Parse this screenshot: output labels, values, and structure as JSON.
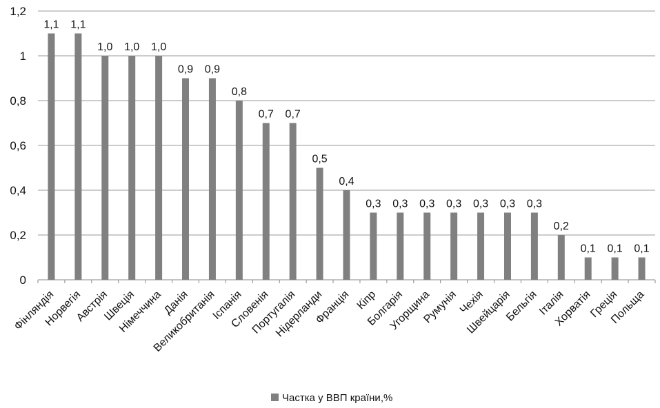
{
  "chart_data": {
    "type": "bar",
    "categories": [
      "Фінляндія",
      "Норвегія",
      "Австрія",
      "Швеція",
      "Німеччина",
      "Данія",
      "Великобританія",
      "Іспанія",
      "Словенія",
      "Португалія",
      "Нідерланди",
      "Франція",
      "Кіпр",
      "Болгарія",
      "Угорщина",
      "Румунія",
      "Чехія",
      "Швейцарія",
      "Бельгія",
      "Італія",
      "Хорватія",
      "Греція",
      "Польща"
    ],
    "values": [
      1.1,
      1.1,
      1.0,
      1.0,
      1.0,
      0.9,
      0.9,
      0.8,
      0.7,
      0.7,
      0.5,
      0.4,
      0.3,
      0.3,
      0.3,
      0.3,
      0.3,
      0.3,
      0.3,
      0.2,
      0.1,
      0.1,
      0.1
    ],
    "data_labels": [
      "1,1",
      "1,1",
      "1,0",
      "1,0",
      "1,0",
      "0,9",
      "0,9",
      "0,8",
      "0,7",
      "0,7",
      "0,5",
      "0,4",
      "0,3",
      "0,3",
      "0,3",
      "0,3",
      "0,3",
      "0,3",
      "0,3",
      "0,2",
      "0,1",
      "0,1",
      "0,1"
    ],
    "series": [
      {
        "name": "Частка у ВВП країни,%"
      }
    ],
    "ylim": [
      0,
      1.2
    ],
    "yticks": [
      0,
      0.2,
      0.4,
      0.6,
      0.8,
      1,
      1.2
    ],
    "ytick_labels": [
      "0",
      "0,2",
      "0,4",
      "0,6",
      "0,8",
      "1",
      "1,2"
    ],
    "grid": true,
    "legend_position": "bottom",
    "bar_color": "#808080"
  }
}
